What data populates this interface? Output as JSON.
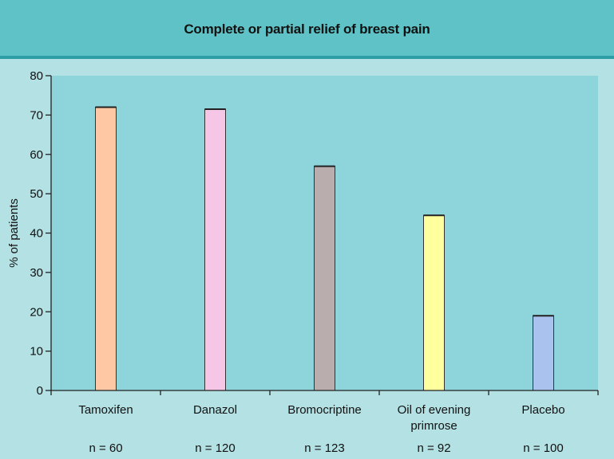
{
  "title": "Complete or partial relief of breast pain",
  "colors": {
    "background": "#b3e1e4",
    "plot_area": "#8dd4db",
    "header": "#5fc2c6",
    "header_rule": "#2e9ea6"
  },
  "chart_data": {
    "type": "bar",
    "title": "Complete or partial relief of breast pain",
    "xlabel": "",
    "ylabel": "% of patients",
    "ylim": [
      0,
      80
    ],
    "yticks": [
      0,
      10,
      20,
      30,
      40,
      50,
      60,
      70,
      80
    ],
    "grid": false,
    "categories": [
      "Tamoxifen",
      "Danazol",
      "Bromocriptine",
      "Oil of evening primrose",
      "Placebo"
    ],
    "category_lines": [
      [
        "Tamoxifen"
      ],
      [
        "Danazol"
      ],
      [
        "Bromocriptine"
      ],
      [
        "Oil of evening",
        "primrose"
      ],
      [
        "Placebo"
      ]
    ],
    "sample_sizes": [
      "n = 60",
      "n = 120",
      "n = 123",
      "n = 92",
      "n = 100"
    ],
    "values": [
      72,
      71.5,
      57,
      44.5,
      19
    ],
    "bar_colors": [
      "#ffc8a4",
      "#f6c6e6",
      "#b9adad",
      "#ffff9e",
      "#a9c2ee"
    ]
  }
}
